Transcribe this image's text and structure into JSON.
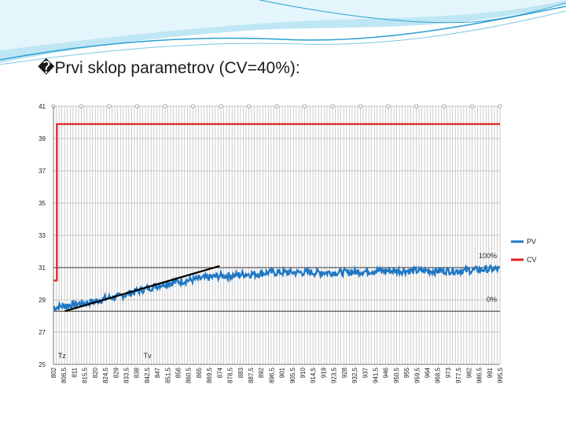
{
  "slide": {
    "title_bullet": "�",
    "title": "Prvi sklop parametrov (CV=40%):"
  },
  "colors": {
    "pv": "#1f77c4",
    "cv": "#e02020",
    "tangent": "#000000",
    "wave_dark": "#2a9fd0",
    "wave_light": "#bfe6f5"
  },
  "chart_data": {
    "type": "line",
    "title": "",
    "xlabel": "",
    "ylabel": "",
    "ylim": [
      25,
      41
    ],
    "xlim": [
      802,
      995.5
    ],
    "y_ticks": [
      "41",
      "39",
      "37",
      "35",
      "33",
      "31",
      "29",
      "27",
      "25"
    ],
    "x_tick_labels": [
      "802",
      "806,5",
      "811",
      "815,5",
      "820",
      "824,5",
      "829",
      "833,5",
      "838",
      "842,5",
      "847",
      "851,5",
      "856",
      "860,5",
      "865",
      "869,5",
      "874",
      "878,5",
      "883",
      "887,5",
      "892",
      "896,5",
      "901",
      "905,5",
      "910",
      "914,5",
      "919",
      "923,5",
      "928",
      "932,5",
      "937",
      "941,5",
      "946",
      "950,5",
      "955",
      "959,5",
      "964",
      "968,5",
      "973",
      "977,5",
      "982",
      "986,5",
      "991",
      "995,5"
    ],
    "grid": true,
    "legend_position": "right",
    "series": [
      {
        "name": "PV",
        "x": [
          802,
          805,
          810,
          815,
          820,
          825,
          830,
          835,
          840,
          845,
          850,
          855,
          860,
          865,
          870,
          875,
          880,
          885,
          890,
          895,
          900,
          910,
          920,
          930,
          940,
          950,
          960,
          970,
          980,
          990,
          995.5
        ],
        "y": [
          28.5,
          28.6,
          28.7,
          28.8,
          28.9,
          29.1,
          29.2,
          29.4,
          29.6,
          29.8,
          30.0,
          30.1,
          30.2,
          30.3,
          30.4,
          30.5,
          30.5,
          30.6,
          30.6,
          30.7,
          30.7,
          30.7,
          30.7,
          30.7,
          30.8,
          30.8,
          30.8,
          30.8,
          30.8,
          30.9,
          30.9
        ]
      },
      {
        "name": "CV",
        "x": [
          802,
          803.5,
          803.5,
          995.5
        ],
        "y": [
          30.2,
          30.2,
          39.9,
          39.9
        ]
      }
    ],
    "tangent_line": {
      "x": [
        807,
        874
      ],
      "y": [
        28.3,
        31.1
      ]
    },
    "reference_lines": [
      {
        "label": "100%",
        "y": 31.0
      },
      {
        "label": "0%",
        "y": 28.3
      }
    ],
    "annotations": [
      {
        "label": "Tz",
        "x": 804
      },
      {
        "label": "Tv",
        "x": 841
      }
    ]
  }
}
